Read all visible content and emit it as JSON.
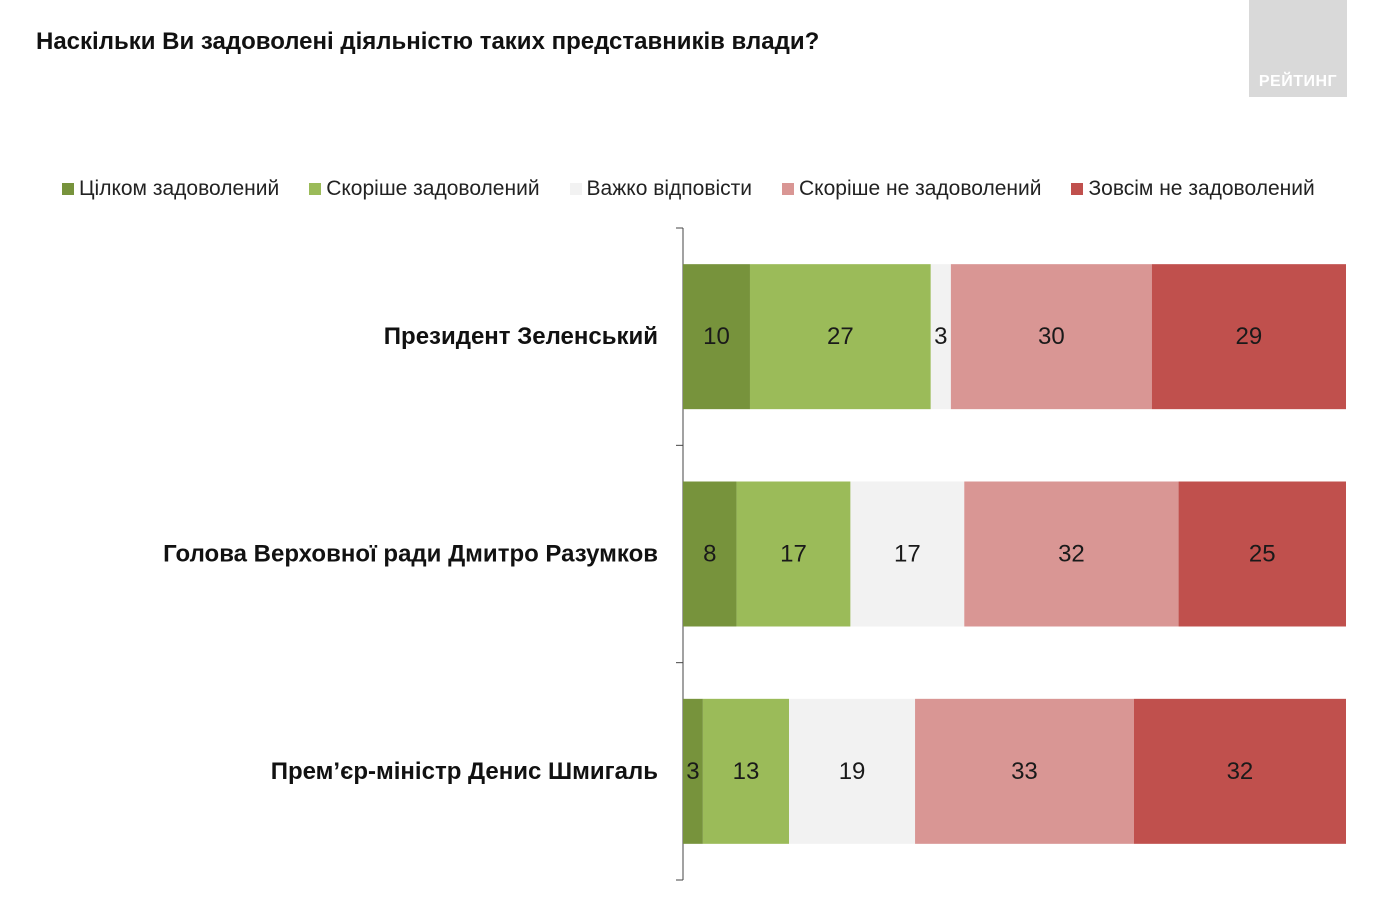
{
  "title": "Наскільки Ви задоволені діяльністю таких представників влади?",
  "logo": {
    "text": "РЕЙТИНГ"
  },
  "chart_data": {
    "type": "bar",
    "orientation": "horizontal",
    "stacked": true,
    "title": "Наскільки Ви задоволені діяльністю таких представників влади?",
    "categories": [
      "Президент Зеленський",
      "Голова Верховної ради Дмитро Разумков",
      "Прем’єр-міністр Денис Шмигаль"
    ],
    "series": [
      {
        "name": "Цілком задоволений",
        "color": "#77933c",
        "values": [
          10,
          8,
          3
        ]
      },
      {
        "name": "Скоріше задоволений",
        "color": "#9bbb59",
        "values": [
          27,
          17,
          13
        ]
      },
      {
        "name": "Важко відповісти",
        "color": "#f2f2f2",
        "values": [
          3,
          17,
          19
        ]
      },
      {
        "name": "Скоріше не задоволений",
        "color": "#d99694",
        "values": [
          30,
          32,
          33
        ]
      },
      {
        "name": "Зовсім не задоволений",
        "color": "#c0504d",
        "values": [
          29,
          25,
          32
        ]
      }
    ],
    "data_labels": true,
    "legend_position": "top",
    "grid": false
  }
}
